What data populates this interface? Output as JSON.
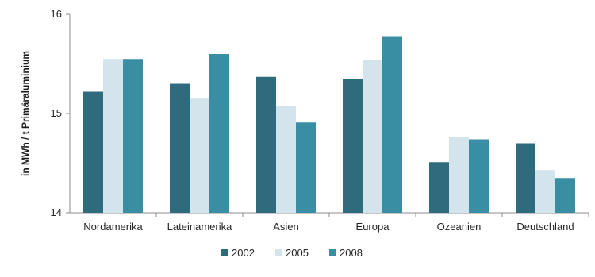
{
  "chart_data": {
    "type": "bar",
    "title": "",
    "xlabel": "",
    "ylabel": "in MWh / t Primäraluminium",
    "ylim": [
      14,
      16
    ],
    "yticks": [
      14,
      15,
      16
    ],
    "grid": false,
    "legend_position": "bottom",
    "categories": [
      "Nordamerika",
      "Lateinamerika",
      "Asien",
      "Europa",
      "Ozeanien",
      "Deutschland"
    ],
    "series": [
      {
        "name": "2002",
        "color": "#2e6b7d",
        "values": [
          15.22,
          15.3,
          15.37,
          15.35,
          14.51,
          14.7
        ]
      },
      {
        "name": "2005",
        "color": "#d4e4ec",
        "values": [
          15.55,
          15.15,
          15.08,
          15.54,
          14.76,
          14.43
        ]
      },
      {
        "name": "2008",
        "color": "#3a8ea3",
        "values": [
          15.55,
          15.6,
          14.91,
          15.78,
          14.74,
          14.35
        ]
      }
    ]
  }
}
